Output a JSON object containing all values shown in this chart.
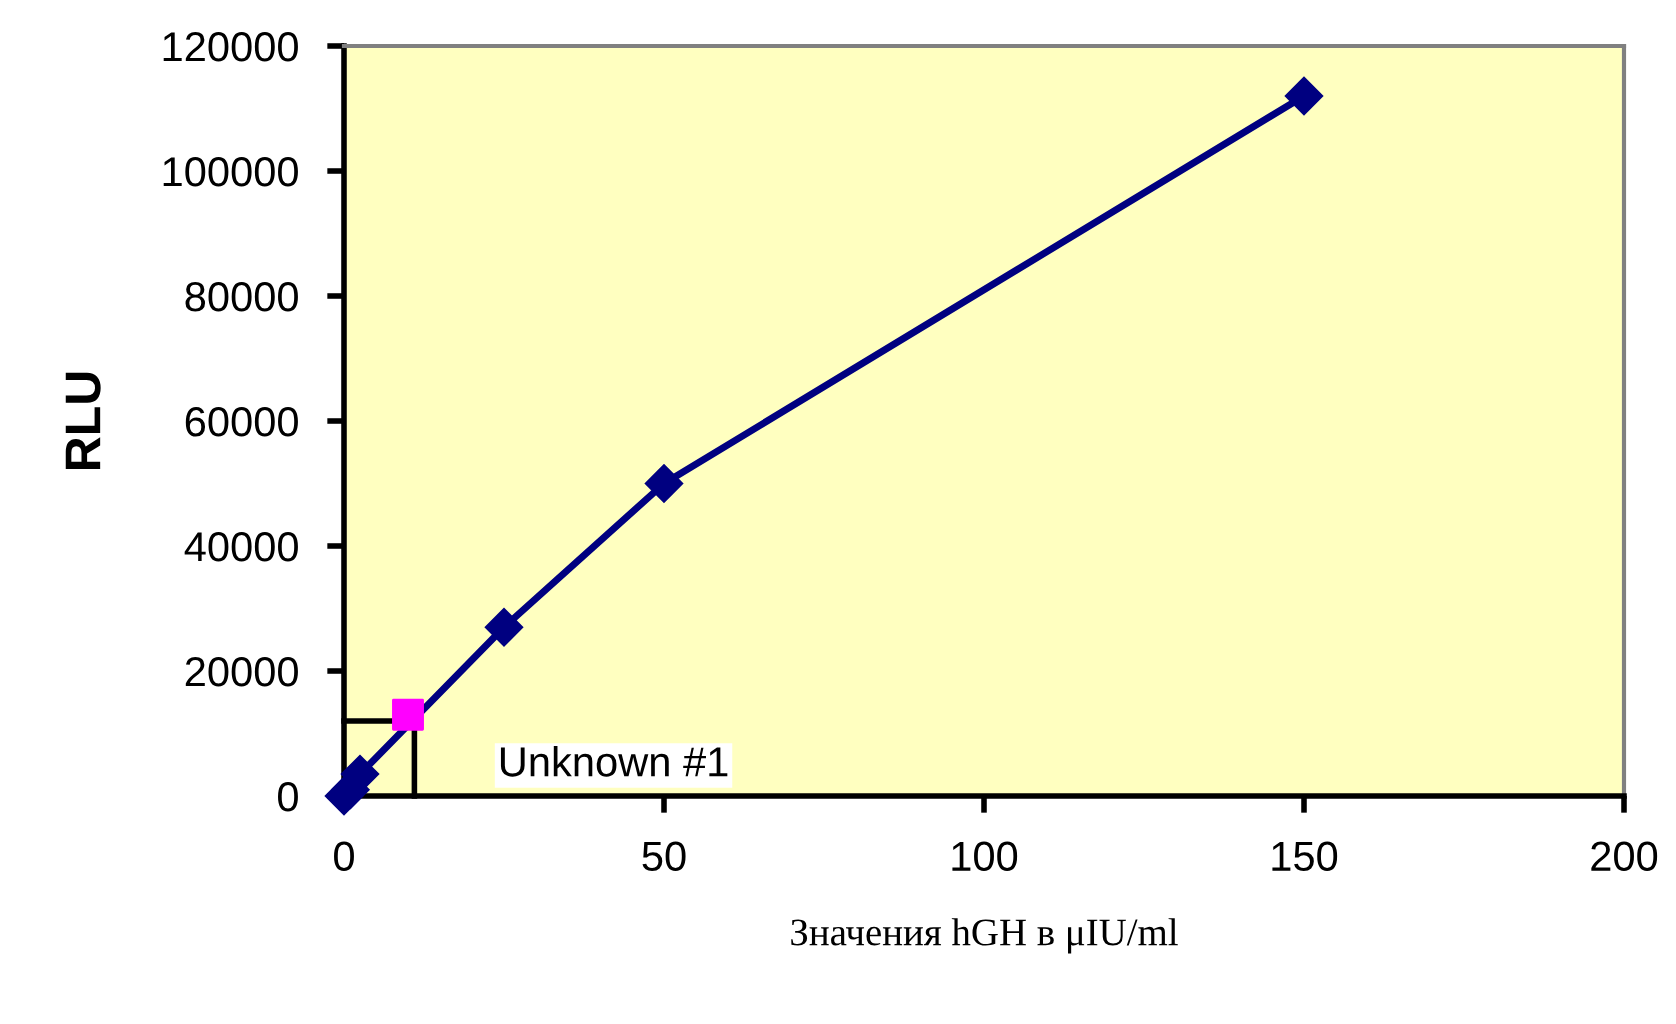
{
  "chart_data": {
    "type": "line",
    "xlabel": "Значения hGH в μIU/ml",
    "ylabel": "RLU",
    "xlim": [
      0,
      200
    ],
    "xticks": [
      0,
      50,
      100,
      150,
      200
    ],
    "ylim": [
      0,
      120000
    ],
    "yticks": [
      0,
      20000,
      40000,
      60000,
      80000,
      100000,
      120000
    ],
    "grid": false,
    "legend": false,
    "series": [
      {
        "color": "#000000",
        "x": [
          0,
          11,
          11
        ],
        "values": [
          12000,
          12000,
          0
        ],
        "marker": "none"
      },
      {
        "color": "#000080",
        "x": [
          0,
          1,
          2.5,
          25,
          50,
          150
        ],
        "values": [
          0,
          1000,
          3500,
          27000,
          50000,
          112000
        ],
        "marker": "diamond"
      },
      {
        "type": "scatter",
        "color": "#ff00ff",
        "x": [
          10
        ],
        "values": [
          13000
        ],
        "marker": "square"
      }
    ],
    "annotations": [
      {
        "text": "Unknown #1",
        "x": 11,
        "y": 0
      }
    ]
  }
}
